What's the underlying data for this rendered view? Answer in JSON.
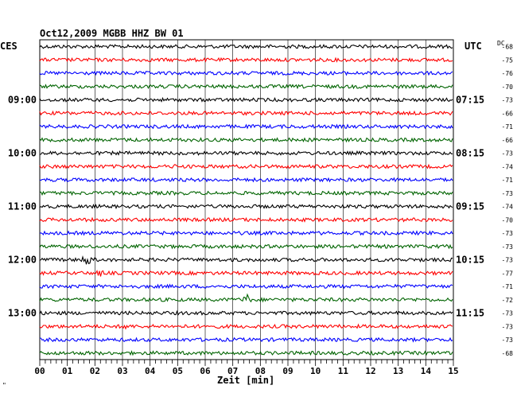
{
  "chart_data": {
    "type": "line",
    "title": "Oct12,2009   MGBB HHZ BW 01",
    "left_timezone": "CES",
    "right_timezone": "UTC",
    "dc_header": "DC",
    "xlabel": "Zeit [min]",
    "xlim": [
      0,
      15
    ],
    "x_ticks": [
      "00",
      "01",
      "02",
      "03",
      "04",
      "05",
      "06",
      "07",
      "08",
      "09",
      "10",
      "11",
      "12",
      "13",
      "14",
      "15"
    ],
    "trace_colors": [
      "#000000",
      "#ff0000",
      "#0000ff",
      "#006400"
    ],
    "hour_labels_left": [
      "09:00",
      "10:00",
      "11:00",
      "12:00",
      "13:00"
    ],
    "hour_labels_right": [
      "07:15",
      "08:15",
      "09:15",
      "10:15",
      "11:15"
    ],
    "hour_label_trace_index": [
      4,
      8,
      12,
      16,
      20
    ],
    "dc_offsets": [
      -68,
      -75,
      -76,
      -70,
      -73,
      -66,
      -71,
      -66,
      -73,
      -74,
      -71,
      -73,
      -74,
      -70,
      -73,
      -73,
      -73,
      -77,
      -71,
      -72,
      -73,
      -73,
      -73,
      -68
    ],
    "events": [
      {
        "trace": 16,
        "minute": 1.7,
        "amplitude": 7,
        "duration": 0.5
      },
      {
        "trace": 17,
        "minute": 2.2,
        "amplitude": 5,
        "duration": 0.3
      },
      {
        "trace": 19,
        "minute": 7.5,
        "amplitude": 8,
        "duration": 0.25
      },
      {
        "trace": 21,
        "minute": 3.1,
        "amplitude": 5,
        "duration": 0.3
      },
      {
        "trace": 9,
        "minute": 4.9,
        "amplitude": 3,
        "duration": 0.25
      }
    ]
  },
  "corner_mark": "\""
}
